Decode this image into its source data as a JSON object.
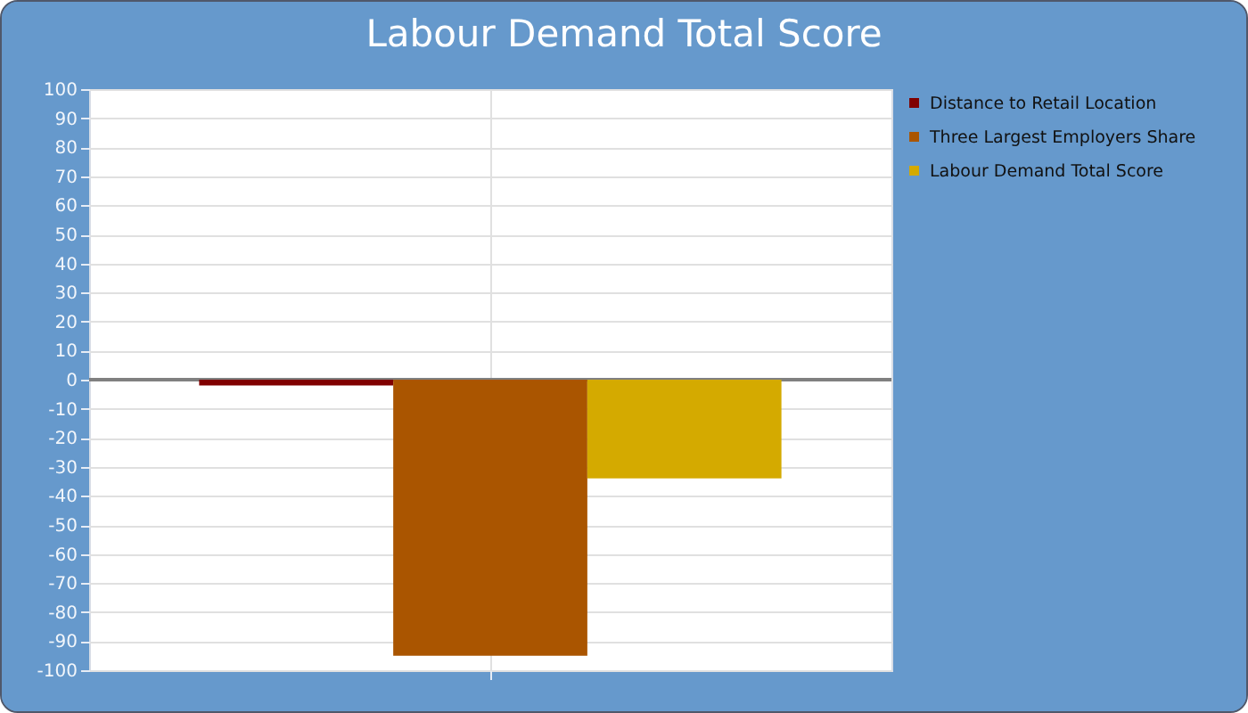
{
  "chart_data": {
    "type": "bar",
    "title": "Labour Demand Total Score",
    "categories": [
      null
    ],
    "series": [
      {
        "name": "Distance to Retail Location",
        "color": "#800000",
        "values": [
          -2
        ]
      },
      {
        "name": "Three Largest Employers Share",
        "color": "#aa5500",
        "values": [
          -95
        ]
      },
      {
        "name": "Labour Demand Total Score",
        "color": "#d4aa00",
        "values": [
          -34
        ]
      }
    ],
    "ylim": [
      -100,
      100
    ],
    "yticks": [
      -100,
      -90,
      -80,
      -70,
      -60,
      -50,
      -40,
      -30,
      -20,
      -10,
      0,
      10,
      20,
      30,
      40,
      50,
      60,
      70,
      80,
      90,
      100
    ],
    "grid": true,
    "legend": "top right",
    "tick_labels": "y",
    "ref_lines": [
      {
        "axis": "y",
        "value": 0,
        "color": "#808080"
      }
    ]
  }
}
